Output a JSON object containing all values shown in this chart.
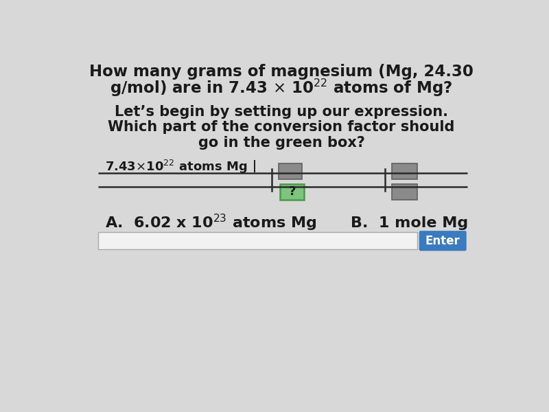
{
  "bg_color": "#d8d8d8",
  "text_color": "#1a1a1a",
  "title_line1": "How many grams of magnesium (Mg, 24.30",
  "title_line2_pre": "g/mol) are in 7.43 × 10",
  "title_line2_sup": "22",
  "title_line2_post": " atoms of Mg?",
  "sub1": "Let’s begin by setting up our expression.",
  "sub2": "Which part of the conversion factor should",
  "sub3": "go in the green box?",
  "num_pre": "7.43×10",
  "num_sup": "22",
  "num_post": " atoms Mg",
  "ans_A_pre": "A.  6.02 x 10",
  "ans_A_sup": "23",
  "ans_A_post": " atoms Mg",
  "ans_B": "B.  1 mole Mg",
  "enter_color": "#3a7bbf",
  "enter_text": "Enter",
  "green_color": "#7dc47d",
  "green_edge": "#4a9a4a",
  "gray_color": "#8a8a8a",
  "gray_edge": "#606060",
  "line_color": "#2a2a2a",
  "input_color": "#f2f2f2",
  "input_edge": "#aaaaaa"
}
